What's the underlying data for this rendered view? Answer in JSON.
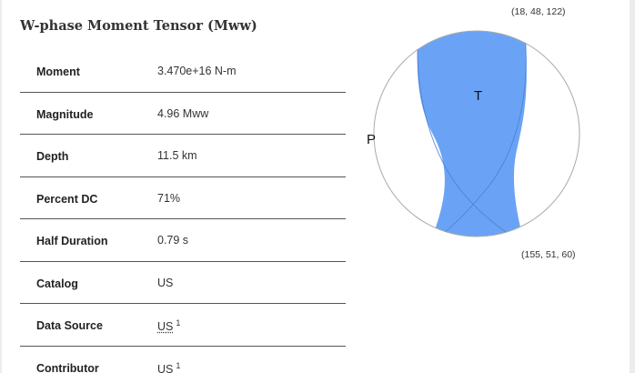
{
  "section": {
    "title": "W-phase Moment Tensor (Mww)"
  },
  "rows": [
    {
      "label": "Moment",
      "value": "3.470e+16 N-m"
    },
    {
      "label": "Magnitude",
      "value": "4.96 Mww"
    },
    {
      "label": "Depth",
      "value": "11.5 km"
    },
    {
      "label": "Percent DC",
      "value": "71%"
    },
    {
      "label": "Half Duration",
      "value": "0.79 s"
    },
    {
      "label": "Catalog",
      "value": "US"
    },
    {
      "label": "Data Source",
      "value": "US",
      "footnote": "1"
    },
    {
      "label": "Contributor",
      "value": "US",
      "footnote": "1"
    }
  ],
  "beachball": {
    "t_axis_label": "T",
    "p_axis_label": "P",
    "nodal_plane_1": "(18, 48, 122)",
    "nodal_plane_2": "(155, 51, 60)",
    "fill_color": "#6aa3f5",
    "stroke_color": "#aaaaaa"
  }
}
